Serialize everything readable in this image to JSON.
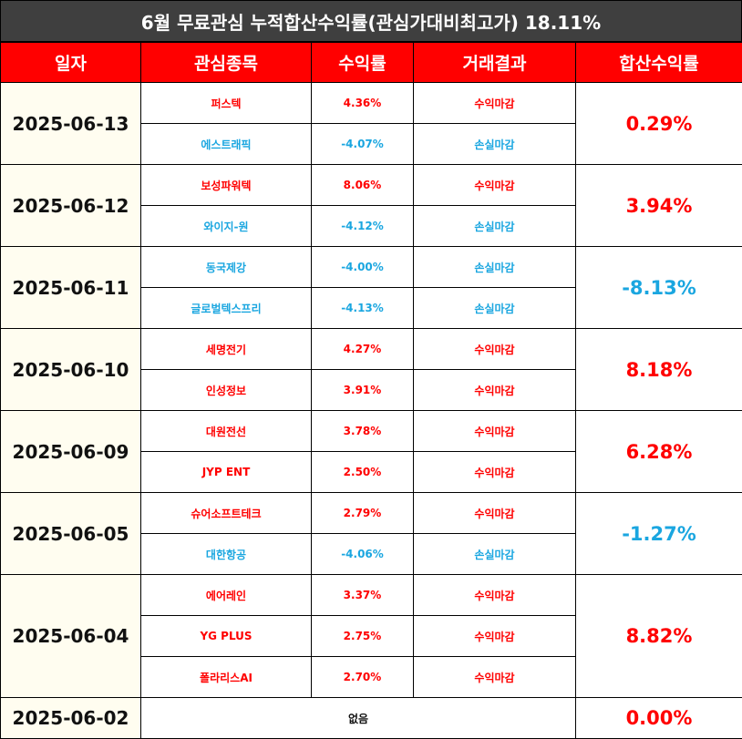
{
  "title": "6월 무료관심 누적합산수익률(관심가대비최고가) 18.11%",
  "headers": [
    "일자",
    "관심종목",
    "수익률",
    "거래결과",
    "합산수익률"
  ],
  "groups": [
    {
      "date": "2025-06-13",
      "total": "0.29%",
      "total_sign": "pos",
      "rows": [
        {
          "name": "퍼스텍",
          "rate": "4.36%",
          "result": "수익마감",
          "sign": "pos"
        },
        {
          "name": "에스트래픽",
          "rate": "-4.07%",
          "result": "손실마감",
          "sign": "neg"
        }
      ]
    },
    {
      "date": "2025-06-12",
      "total": "3.94%",
      "total_sign": "pos",
      "rows": [
        {
          "name": "보성파워텍",
          "rate": "8.06%",
          "result": "수익마감",
          "sign": "pos"
        },
        {
          "name": "와이지-원",
          "rate": "-4.12%",
          "result": "손실마감",
          "sign": "neg"
        }
      ]
    },
    {
      "date": "2025-06-11",
      "total": "-8.13%",
      "total_sign": "neg",
      "rows": [
        {
          "name": "동국제강",
          "rate": "-4.00%",
          "result": "손실마감",
          "sign": "neg"
        },
        {
          "name": "글로벌텍스프리",
          "rate": "-4.13%",
          "result": "손실마감",
          "sign": "neg"
        }
      ]
    },
    {
      "date": "2025-06-10",
      "total": "8.18%",
      "total_sign": "pos",
      "rows": [
        {
          "name": "세명전기",
          "rate": "4.27%",
          "result": "수익마감",
          "sign": "pos"
        },
        {
          "name": "인성정보",
          "rate": "3.91%",
          "result": "수익마감",
          "sign": "pos"
        }
      ]
    },
    {
      "date": "2025-06-09",
      "total": "6.28%",
      "total_sign": "pos",
      "rows": [
        {
          "name": "대원전선",
          "rate": "3.78%",
          "result": "수익마감",
          "sign": "pos"
        },
        {
          "name": "JYP ENT",
          "rate": "2.50%",
          "result": "수익마감",
          "sign": "pos"
        }
      ]
    },
    {
      "date": "2025-06-05",
      "total": "-1.27%",
      "total_sign": "neg",
      "rows": [
        {
          "name": "슈어소프트테크",
          "rate": "2.79%",
          "result": "수익마감",
          "sign": "pos"
        },
        {
          "name": "대한항공",
          "rate": "-4.06%",
          "result": "손실마감",
          "sign": "neg"
        }
      ]
    },
    {
      "date": "2025-06-04",
      "total": "8.82%",
      "total_sign": "pos",
      "rows": [
        {
          "name": "에어레인",
          "rate": "3.37%",
          "result": "수익마감",
          "sign": "pos"
        },
        {
          "name": "YG PLUS",
          "rate": "2.75%",
          "result": "수익마감",
          "sign": "pos"
        },
        {
          "name": "폴라리스AI",
          "rate": "2.70%",
          "result": "수익마감",
          "sign": "pos"
        }
      ]
    }
  ],
  "last": {
    "date": "2025-06-02",
    "none": "없음",
    "total": "0.00%",
    "total_sign": "pos"
  },
  "colors": {
    "header_bg": "#ff0000",
    "title_bg": "#3f3f3f",
    "positive": "#ff0000",
    "negative": "#1aa6e0",
    "date_bg": "#fffdf0"
  }
}
